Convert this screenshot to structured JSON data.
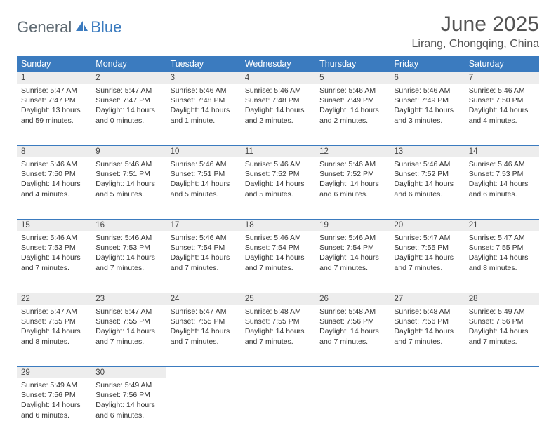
{
  "logo": {
    "part1": "General",
    "part2": "Blue"
  },
  "title": "June 2025",
  "location": "Lirang, Chongqing, China",
  "colors": {
    "header_bg": "#3b7bbf",
    "header_text": "#ffffff",
    "daynum_bg": "#ededed",
    "border": "#3b7bbf",
    "title_color": "#545454",
    "logo_gray": "#5f6a72",
    "logo_blue": "#3b7bbf"
  },
  "weekdays": [
    "Sunday",
    "Monday",
    "Tuesday",
    "Wednesday",
    "Thursday",
    "Friday",
    "Saturday"
  ],
  "weeks": [
    [
      {
        "n": "1",
        "sr": "5:47 AM",
        "ss": "7:47 PM",
        "dl": "13 hours and 59 minutes."
      },
      {
        "n": "2",
        "sr": "5:47 AM",
        "ss": "7:47 PM",
        "dl": "14 hours and 0 minutes."
      },
      {
        "n": "3",
        "sr": "5:46 AM",
        "ss": "7:48 PM",
        "dl": "14 hours and 1 minute."
      },
      {
        "n": "4",
        "sr": "5:46 AM",
        "ss": "7:48 PM",
        "dl": "14 hours and 2 minutes."
      },
      {
        "n": "5",
        "sr": "5:46 AM",
        "ss": "7:49 PM",
        "dl": "14 hours and 2 minutes."
      },
      {
        "n": "6",
        "sr": "5:46 AM",
        "ss": "7:49 PM",
        "dl": "14 hours and 3 minutes."
      },
      {
        "n": "7",
        "sr": "5:46 AM",
        "ss": "7:50 PM",
        "dl": "14 hours and 4 minutes."
      }
    ],
    [
      {
        "n": "8",
        "sr": "5:46 AM",
        "ss": "7:50 PM",
        "dl": "14 hours and 4 minutes."
      },
      {
        "n": "9",
        "sr": "5:46 AM",
        "ss": "7:51 PM",
        "dl": "14 hours and 5 minutes."
      },
      {
        "n": "10",
        "sr": "5:46 AM",
        "ss": "7:51 PM",
        "dl": "14 hours and 5 minutes."
      },
      {
        "n": "11",
        "sr": "5:46 AM",
        "ss": "7:52 PM",
        "dl": "14 hours and 5 minutes."
      },
      {
        "n": "12",
        "sr": "5:46 AM",
        "ss": "7:52 PM",
        "dl": "14 hours and 6 minutes."
      },
      {
        "n": "13",
        "sr": "5:46 AM",
        "ss": "7:52 PM",
        "dl": "14 hours and 6 minutes."
      },
      {
        "n": "14",
        "sr": "5:46 AM",
        "ss": "7:53 PM",
        "dl": "14 hours and 6 minutes."
      }
    ],
    [
      {
        "n": "15",
        "sr": "5:46 AM",
        "ss": "7:53 PM",
        "dl": "14 hours and 7 minutes."
      },
      {
        "n": "16",
        "sr": "5:46 AM",
        "ss": "7:53 PM",
        "dl": "14 hours and 7 minutes."
      },
      {
        "n": "17",
        "sr": "5:46 AM",
        "ss": "7:54 PM",
        "dl": "14 hours and 7 minutes."
      },
      {
        "n": "18",
        "sr": "5:46 AM",
        "ss": "7:54 PM",
        "dl": "14 hours and 7 minutes."
      },
      {
        "n": "19",
        "sr": "5:46 AM",
        "ss": "7:54 PM",
        "dl": "14 hours and 7 minutes."
      },
      {
        "n": "20",
        "sr": "5:47 AM",
        "ss": "7:55 PM",
        "dl": "14 hours and 7 minutes."
      },
      {
        "n": "21",
        "sr": "5:47 AM",
        "ss": "7:55 PM",
        "dl": "14 hours and 8 minutes."
      }
    ],
    [
      {
        "n": "22",
        "sr": "5:47 AM",
        "ss": "7:55 PM",
        "dl": "14 hours and 8 minutes."
      },
      {
        "n": "23",
        "sr": "5:47 AM",
        "ss": "7:55 PM",
        "dl": "14 hours and 7 minutes."
      },
      {
        "n": "24",
        "sr": "5:47 AM",
        "ss": "7:55 PM",
        "dl": "14 hours and 7 minutes."
      },
      {
        "n": "25",
        "sr": "5:48 AM",
        "ss": "7:55 PM",
        "dl": "14 hours and 7 minutes."
      },
      {
        "n": "26",
        "sr": "5:48 AM",
        "ss": "7:56 PM",
        "dl": "14 hours and 7 minutes."
      },
      {
        "n": "27",
        "sr": "5:48 AM",
        "ss": "7:56 PM",
        "dl": "14 hours and 7 minutes."
      },
      {
        "n": "28",
        "sr": "5:49 AM",
        "ss": "7:56 PM",
        "dl": "14 hours and 7 minutes."
      }
    ],
    [
      {
        "n": "29",
        "sr": "5:49 AM",
        "ss": "7:56 PM",
        "dl": "14 hours and 6 minutes."
      },
      {
        "n": "30",
        "sr": "5:49 AM",
        "ss": "7:56 PM",
        "dl": "14 hours and 6 minutes."
      },
      null,
      null,
      null,
      null,
      null
    ]
  ],
  "labels": {
    "sunrise": "Sunrise: ",
    "sunset": "Sunset: ",
    "daylight": "Daylight: "
  }
}
